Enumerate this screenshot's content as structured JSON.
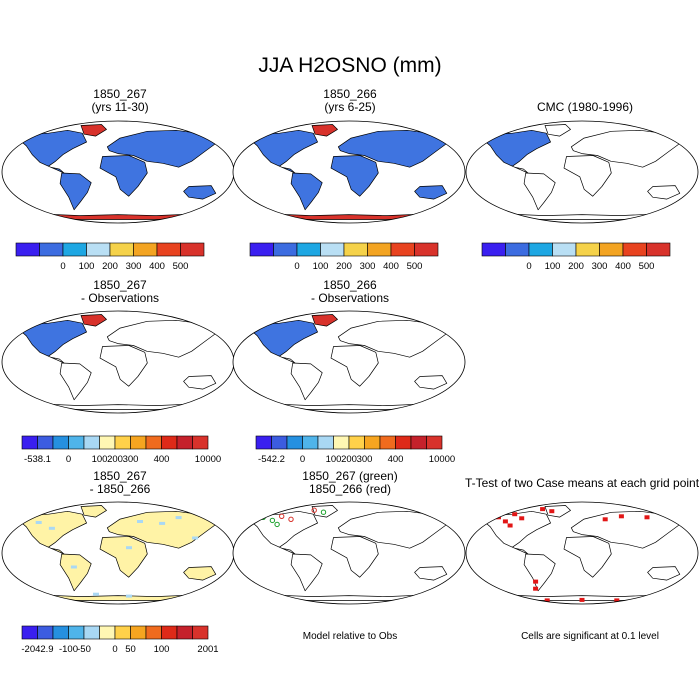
{
  "figure": {
    "title": "JJA H2OSNO (mm)",
    "notes": {
      "model_relative": "Model relative to Obs",
      "ttest_significance": "Cells are significant at 0.1 level"
    }
  },
  "colors": {
    "bar_fills_11": [
      "#3a1ff0",
      "#3c6ce0",
      "#1ea7e3",
      "#b9dff4",
      "#f5d24a",
      "#f3a422",
      "#e8431f",
      "#d8322b"
    ],
    "diff_fills": [
      "#3a1ff0",
      "#3c5ce0",
      "#2590e0",
      "#4fb4ea",
      "#a9d8f4",
      "#fff7b3",
      "#ffd14a",
      "#f6a520",
      "#f06b1e",
      "#de2a18",
      "#c5212b",
      "#d8322b"
    ],
    "land_blue": "#3f74e0",
    "land_red": "#d8322b",
    "land_yellow": "#fff3a6",
    "land_lightblue": "#a9d8f4"
  },
  "chart_data": [
    {
      "type": "heatmap",
      "title": "1850_267\n(yrs 11-30)",
      "colorbar": {
        "ticks": [
          "0",
          "100",
          "200",
          "300",
          "400",
          "500"
        ]
      }
    },
    {
      "type": "heatmap",
      "title": "1850_266\n(yrs 6-25)",
      "colorbar": {
        "ticks": [
          "0",
          "100",
          "200",
          "300",
          "400",
          "500"
        ]
      }
    },
    {
      "type": "heatmap",
      "title": "CMC (1980-1996)",
      "colorbar": {
        "ticks": [
          "0",
          "100",
          "200",
          "300",
          "400",
          "500"
        ]
      }
    },
    {
      "type": "heatmap",
      "title": "1850_267\n- Observations",
      "colorbar": {
        "ticks": [
          "-538.1",
          "0",
          "100",
          "200",
          "300",
          "400",
          "10000"
        ]
      }
    },
    {
      "type": "heatmap",
      "title": "1850_266\n- Observations",
      "colorbar": {
        "ticks": [
          "-542.2",
          "0",
          "100",
          "200",
          "300",
          "400",
          "10000"
        ]
      }
    },
    {
      "type": "heatmap",
      "title": "1850_267\n- 1850_266",
      "colorbar": {
        "ticks": [
          "-2042.9",
          "-100",
          "-50",
          "0",
          "50",
          "100",
          "2001"
        ]
      }
    },
    {
      "type": "heatmap",
      "title": "1850_267 (green)\n1850_266 (red)"
    },
    {
      "type": "heatmap",
      "title": "T-Test of two Case means at each grid point"
    }
  ]
}
